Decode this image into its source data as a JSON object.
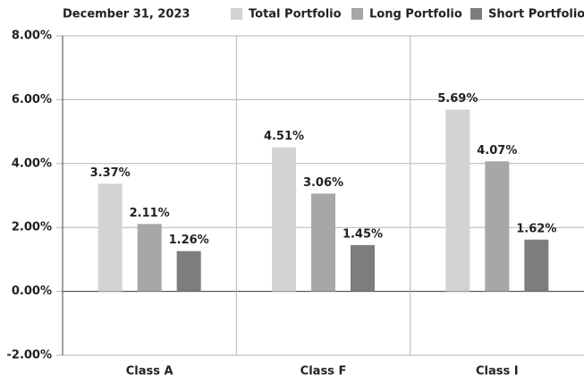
{
  "chart_data": {
    "type": "bar",
    "title": "December 31, 2023",
    "categories": [
      "Class A",
      "Class F",
      "Class I"
    ],
    "series": [
      {
        "name": "Total Portfolio",
        "color": "#d3d3d3",
        "values": [
          3.37,
          4.51,
          5.69
        ],
        "value_labels": [
          "3.37%",
          "4.51%",
          "5.69%"
        ]
      },
      {
        "name": "Long Portfolio",
        "color": "#a7a7a9",
        "values": [
          2.11,
          3.06,
          4.07
        ],
        "value_labels": [
          "2.11%",
          "3.06%",
          "4.07%"
        ]
      },
      {
        "name": "Short Portfolio",
        "color": "#7d7d7f",
        "values": [
          1.26,
          1.45,
          1.62
        ],
        "value_labels": [
          "1.26%",
          "1.45%",
          "1.62%"
        ]
      }
    ],
    "ylim": [
      -2,
      8
    ],
    "yticks": [
      {
        "value": -2,
        "label": "-2.00%"
      },
      {
        "value": 0,
        "label": "0.00%"
      },
      {
        "value": 2,
        "label": "2.00%"
      },
      {
        "value": 4,
        "label": "4.00%"
      },
      {
        "value": 6,
        "label": "6.00%"
      },
      {
        "value": 8,
        "label": "8.00%"
      }
    ],
    "grid": true
  }
}
